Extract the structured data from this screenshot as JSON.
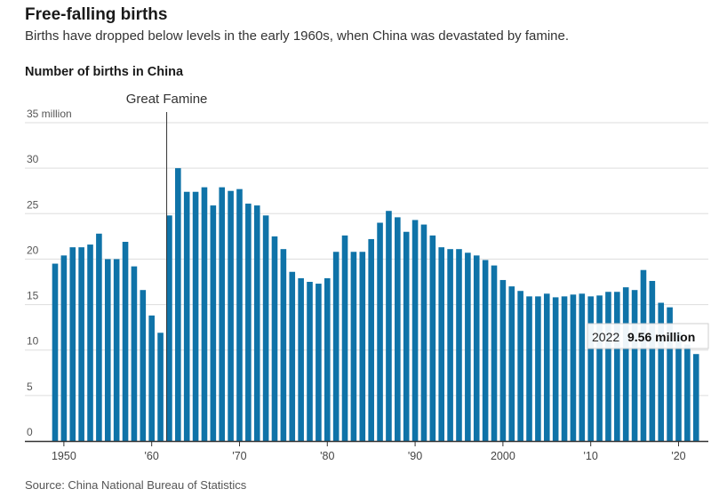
{
  "header": {
    "title": "Free-falling births",
    "subtitle": "Births have dropped below levels in the early 1960s, when China was devastated by famine."
  },
  "footer": {
    "source": "Source: China National Bureau of Statistics"
  },
  "colors": {
    "bar": "#0f73a8",
    "grid": "#dddddd",
    "axis": "#333333"
  },
  "chart_data": {
    "type": "bar",
    "title": "Number of births in China",
    "ylim": [
      0,
      35
    ],
    "yticks": [
      0,
      5,
      10,
      15,
      20,
      25,
      30,
      35
    ],
    "ytick_labels": [
      "0",
      "5",
      "10",
      "15",
      "20",
      "25",
      "30",
      "35 million"
    ],
    "xticks": [
      1950,
      1960,
      1970,
      1980,
      1990,
      2000,
      2010,
      2020
    ],
    "xtick_labels": [
      "1950",
      "'60",
      "'70",
      "'80",
      "'90",
      "2000",
      "'10",
      "'20"
    ],
    "grid": "horizontal",
    "x": [
      1949,
      1950,
      1951,
      1952,
      1953,
      1954,
      1955,
      1956,
      1957,
      1958,
      1959,
      1960,
      1961,
      1962,
      1963,
      1964,
      1965,
      1966,
      1967,
      1968,
      1969,
      1970,
      1971,
      1972,
      1973,
      1974,
      1975,
      1976,
      1977,
      1978,
      1979,
      1980,
      1981,
      1982,
      1983,
      1984,
      1985,
      1986,
      1987,
      1988,
      1989,
      1990,
      1991,
      1992,
      1993,
      1994,
      1995,
      1996,
      1997,
      1998,
      1999,
      2000,
      2001,
      2002,
      2003,
      2004,
      2005,
      2006,
      2007,
      2008,
      2009,
      2010,
      2011,
      2012,
      2013,
      2014,
      2015,
      2016,
      2017,
      2018,
      2019,
      2020,
      2021,
      2022
    ],
    "values": [
      19.5,
      20.4,
      21.3,
      21.3,
      21.6,
      22.8,
      20.0,
      20.0,
      21.9,
      19.2,
      16.6,
      13.8,
      11.9,
      24.8,
      30.0,
      27.4,
      27.4,
      27.9,
      25.9,
      27.9,
      27.5,
      27.7,
      26.1,
      25.9,
      24.8,
      22.5,
      21.1,
      18.6,
      17.9,
      17.5,
      17.3,
      17.9,
      20.8,
      22.6,
      20.8,
      20.8,
      22.2,
      24.0,
      25.3,
      24.6,
      23.0,
      24.3,
      23.8,
      22.6,
      21.3,
      21.1,
      21.1,
      20.7,
      20.4,
      19.9,
      19.3,
      17.7,
      17.0,
      16.5,
      15.9,
      15.9,
      16.2,
      15.8,
      15.9,
      16.1,
      16.2,
      15.9,
      16.0,
      16.4,
      16.4,
      16.9,
      16.6,
      18.8,
      17.6,
      15.2,
      14.7,
      12.0,
      10.6,
      9.56
    ],
    "annotations": [
      {
        "year": 1961,
        "text": "Great Famine"
      },
      {
        "year": 2022,
        "year_label": "2022",
        "value_label": "9.56 million"
      }
    ]
  }
}
